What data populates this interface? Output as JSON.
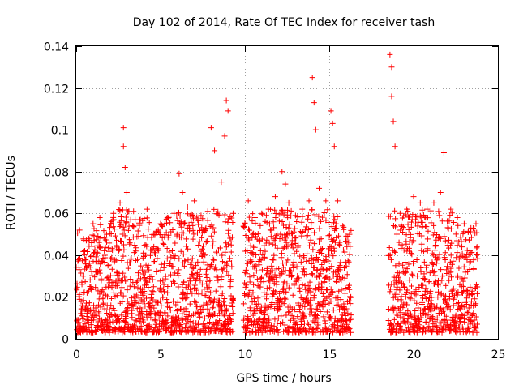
{
  "chart_data": {
    "type": "scatter",
    "title": "Day 102 of 2014, Rate Of TEC Index for receiver tash",
    "xlabel": "GPS time / hours",
    "ylabel": "ROTI / TECUs",
    "xlim": [
      0,
      25
    ],
    "ylim": [
      0,
      0.14
    ],
    "xticks": [
      0,
      5,
      10,
      15,
      20,
      25
    ],
    "xtick_labels": [
      "0",
      "5",
      "10",
      "15",
      "20",
      "25"
    ],
    "yticks": [
      0,
      0.02,
      0.04,
      0.06,
      0.08,
      0.1,
      0.12,
      0.14
    ],
    "ytick_labels": [
      "0",
      "0.02",
      "0.04",
      "0.06",
      "0.08",
      "0.1",
      "0.12",
      "0.14"
    ],
    "grid": true,
    "marker": "+",
    "marker_color": "#ff0000",
    "series": [
      {
        "name": "ROTI",
        "x": [
          0.2,
          0.6,
          1.0,
          1.4,
          1.8,
          2.2,
          2.6,
          2.8,
          2.8,
          2.9,
          3.0,
          3.4,
          3.8,
          4.2,
          4.6,
          5.0,
          5.4,
          5.8,
          6.1,
          6.3,
          6.6,
          7.0,
          7.4,
          7.8,
          8.0,
          8.2,
          8.6,
          8.8,
          8.9,
          9.0,
          9.3,
          10.2,
          10.6,
          11.0,
          11.4,
          11.8,
          12.2,
          12.4,
          12.6,
          13.0,
          13.4,
          13.8,
          14.0,
          14.1,
          14.2,
          14.4,
          14.8,
          15.1,
          15.2,
          15.3,
          15.5,
          15.8,
          16.2,
          18.6,
          18.7,
          18.7,
          18.8,
          18.9,
          19.2,
          19.6,
          20.0,
          20.4,
          20.8,
          21.2,
          21.6,
          21.8,
          22.2,
          22.6,
          23.0,
          23.4,
          23.7
        ],
        "y": [
          0.052,
          0.047,
          0.055,
          0.058,
          0.05,
          0.06,
          0.065,
          0.101,
          0.092,
          0.082,
          0.07,
          0.061,
          0.057,
          0.062,
          0.05,
          0.055,
          0.058,
          0.06,
          0.079,
          0.07,
          0.063,
          0.066,
          0.059,
          0.061,
          0.101,
          0.09,
          0.075,
          0.097,
          0.114,
          0.109,
          0.06,
          0.066,
          0.058,
          0.06,
          0.062,
          0.068,
          0.08,
          0.074,
          0.065,
          0.059,
          0.062,
          0.066,
          0.125,
          0.113,
          0.1,
          0.072,
          0.066,
          0.109,
          0.103,
          0.092,
          0.066,
          0.054,
          0.05,
          0.136,
          0.13,
          0.116,
          0.104,
          0.092,
          0.06,
          0.062,
          0.068,
          0.065,
          0.062,
          0.065,
          0.07,
          0.089,
          0.062,
          0.058,
          0.055,
          0.053,
          0.055
        ]
      }
    ],
    "gaps_hours": [
      [
        9.3,
        9.9
      ],
      [
        16.3,
        18.5
      ],
      [
        23.8,
        25
      ]
    ]
  }
}
